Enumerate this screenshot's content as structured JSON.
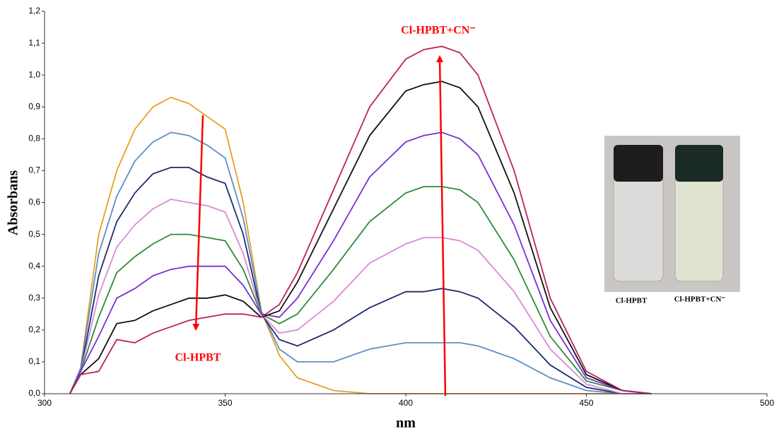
{
  "chart_data": {
    "type": "line",
    "x_label": "nm",
    "y_label": "Absorbans",
    "annotations": [
      "Cl-HPBT+CN⁻",
      "Cl-HPBT"
    ],
    "inset_labels": [
      "Cl-HPBT",
      "Cl-HPBT+CN⁻"
    ],
    "xlim": [
      300,
      500
    ],
    "xticks": [
      300,
      350,
      400,
      450,
      500
    ],
    "ylim": [
      0,
      1.2
    ],
    "yticks": [
      {
        "value": 0,
        "label": "0,0"
      },
      {
        "value": 0.1,
        "label": "0,1"
      },
      {
        "value": 0.2,
        "label": "0,2"
      },
      {
        "value": 0.3,
        "label": "0,3"
      },
      {
        "value": 0.4,
        "label": "0,4"
      },
      {
        "value": 0.5,
        "label": "0,5"
      },
      {
        "value": 0.6,
        "label": "0,6"
      },
      {
        "value": 0.7,
        "label": "0,7"
      },
      {
        "value": 0.8,
        "label": "0,8"
      },
      {
        "value": 0.9,
        "label": "0,9"
      },
      {
        "value": 1.0,
        "label": "1,0"
      },
      {
        "value": 1.1,
        "label": "1,1"
      },
      {
        "value": 1.2,
        "label": "1,2"
      }
    ],
    "x": [
      307,
      310,
      315,
      320,
      325,
      330,
      335,
      340,
      345,
      350,
      355,
      360,
      365,
      370,
      380,
      390,
      400,
      405,
      410,
      415,
      420,
      430,
      440,
      450,
      460,
      468
    ],
    "series": [
      {
        "color": "#e8a020",
        "values": [
          0,
          0.08,
          0.5,
          0.7,
          0.83,
          0.9,
          0.93,
          0.91,
          0.87,
          0.83,
          0.6,
          0.26,
          0.12,
          0.05,
          0.01,
          0,
          0,
          0,
          0,
          0,
          0,
          0,
          0,
          0,
          0,
          0
        ]
      },
      {
        "color": "#5b8fc9",
        "values": [
          0,
          0.08,
          0.44,
          0.62,
          0.73,
          0.79,
          0.82,
          0.81,
          0.78,
          0.74,
          0.55,
          0.26,
          0.14,
          0.1,
          0.1,
          0.14,
          0.16,
          0.16,
          0.16,
          0.16,
          0.15,
          0.11,
          0.05,
          0.01,
          0,
          0
        ]
      },
      {
        "color": "#1c2a6e",
        "values": [
          0,
          0.07,
          0.37,
          0.54,
          0.63,
          0.69,
          0.71,
          0.71,
          0.68,
          0.66,
          0.5,
          0.25,
          0.17,
          0.15,
          0.2,
          0.27,
          0.32,
          0.32,
          0.33,
          0.32,
          0.3,
          0.21,
          0.09,
          0.02,
          0,
          0
        ]
      },
      {
        "color": "#d98ad6",
        "values": [
          0,
          0.07,
          0.31,
          0.46,
          0.53,
          0.58,
          0.61,
          0.6,
          0.59,
          0.57,
          0.44,
          0.25,
          0.19,
          0.2,
          0.29,
          0.41,
          0.47,
          0.49,
          0.49,
          0.48,
          0.45,
          0.32,
          0.14,
          0.03,
          0,
          0
        ]
      },
      {
        "color": "#2e8b3a",
        "values": [
          0,
          0.07,
          0.24,
          0.38,
          0.43,
          0.47,
          0.5,
          0.5,
          0.49,
          0.48,
          0.39,
          0.25,
          0.22,
          0.25,
          0.39,
          0.54,
          0.63,
          0.65,
          0.65,
          0.64,
          0.6,
          0.42,
          0.18,
          0.04,
          0.01,
          0
        ]
      },
      {
        "color": "#7a2fd0",
        "values": [
          0,
          0.07,
          0.18,
          0.3,
          0.33,
          0.37,
          0.39,
          0.4,
          0.4,
          0.4,
          0.34,
          0.25,
          0.24,
          0.3,
          0.48,
          0.68,
          0.79,
          0.81,
          0.82,
          0.8,
          0.75,
          0.53,
          0.23,
          0.05,
          0.01,
          0
        ]
      },
      {
        "color": "#111111",
        "values": [
          0,
          0.06,
          0.11,
          0.22,
          0.23,
          0.26,
          0.28,
          0.3,
          0.3,
          0.31,
          0.29,
          0.24,
          0.26,
          0.35,
          0.58,
          0.81,
          0.95,
          0.97,
          0.98,
          0.96,
          0.9,
          0.63,
          0.27,
          0.06,
          0.01,
          0
        ]
      },
      {
        "color": "#b8245a",
        "values": [
          0,
          0.06,
          0.07,
          0.17,
          0.16,
          0.19,
          0.21,
          0.23,
          0.24,
          0.25,
          0.25,
          0.24,
          0.28,
          0.38,
          0.64,
          0.9,
          1.05,
          1.08,
          1.09,
          1.07,
          1.0,
          0.7,
          0.3,
          0.07,
          0.01,
          0
        ]
      }
    ]
  }
}
